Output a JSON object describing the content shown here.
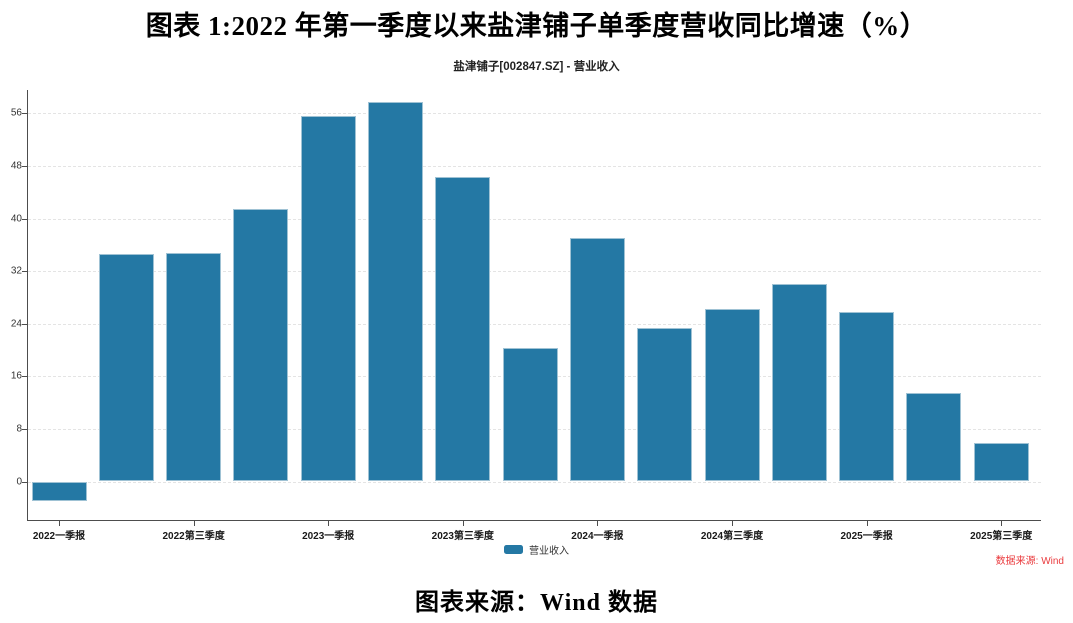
{
  "page": {
    "title": "图表 1:2022 年第一季度以来盐津铺子单季度营收同比增速（%）",
    "caption": "图表来源：Wind 数据"
  },
  "chart_data": {
    "type": "bar",
    "title": "盐津铺子[002847.SZ] - 营业收入",
    "series": [
      {
        "name": "营业收入",
        "values": [
          -3.0,
          34.6,
          34.8,
          41.4,
          55.6,
          57.8,
          46.3,
          20.3,
          37.0,
          23.4,
          26.2,
          30.1,
          25.8,
          13.4,
          5.9
        ]
      }
    ],
    "x_tick_labels": [
      "2022一季报",
      "2022第三季度",
      "2023一季报",
      "2023第三季度",
      "2024一季报",
      "2024第三季度",
      "2025一季报",
      "2025第三季度"
    ],
    "x_tick_bar_indices": [
      0,
      2,
      4,
      6,
      8,
      10,
      12,
      14
    ],
    "y_ticks": [
      0,
      8,
      16,
      24,
      32,
      40,
      48,
      56
    ],
    "ylim": [
      -5.9,
      58.9
    ],
    "grid": true,
    "legend_position": "bottom-center",
    "legend_label": "营业收入",
    "bar_color": "#2478a4",
    "bar_border_color": "#9fc2d4",
    "source_note": "数据来源: Wind",
    "source_note_color": "#ea3b3e"
  }
}
